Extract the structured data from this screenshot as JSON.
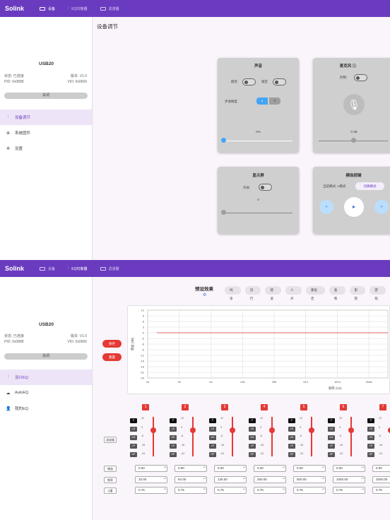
{
  "app": {
    "brand": "Solink",
    "nav": [
      "设备",
      "EQ均衡器",
      "滤波器"
    ]
  },
  "device": {
    "name": "USB20",
    "status_label": "状态: 已连接",
    "version_label": "版本: V1.0",
    "pid_label": "PID: 0x0888",
    "vid_label": "VID: 0x0666",
    "close_label": "关闭"
  },
  "screen1": {
    "sidebar": [
      "设备调节",
      "系统固件",
      "设置"
    ],
    "page_title": "设备调节",
    "sound": {
      "title": "声音",
      "mute": "静音",
      "lock": "锁定",
      "step": "步进精度",
      "step_options": [
        "1",
        "5"
      ],
      "volume": "0%",
      "volume_value": 0
    },
    "mic": {
      "title": "麦克风",
      "control": "控制:",
      "gain": "0 dB",
      "gain_value": 0.5
    },
    "display": {
      "title": "显示屏",
      "switch": "开关:",
      "brightness": "0",
      "brightness_value": 0
    },
    "analog": {
      "title": "模拟按键",
      "mode": "当前模式: A模式",
      "switch_mode": "切换模式",
      "buttons": [
        "«",
        "▸",
        "»"
      ]
    }
  },
  "screen2": {
    "sidebar": [
      "设计EQ",
      "AutoEQ",
      "我的EQ"
    ],
    "preset_title": "预设效果",
    "presets": [
      "纯净",
      "流行",
      "摇滚",
      "人声",
      "重低音",
      "柔和",
      "影院",
      "游戏"
    ],
    "save": "保存",
    "reset": "重置",
    "chart_data": {
      "type": "line",
      "ylabel": "增益 (dB)",
      "xlabel": "频率 (Hz)",
      "yticks": [
        12,
        9,
        6,
        3,
        0,
        -3,
        -6,
        -9,
        -12,
        -15,
        -18,
        -21,
        -24
      ],
      "xticks": [
        "16",
        "32",
        "64",
        "128",
        "256",
        "512",
        "1024",
        "2048"
      ],
      "ylim": [
        -24,
        12
      ],
      "series": [
        {
          "x": [
            16,
            2048
          ],
          "y": [
            0,
            0
          ]
        }
      ]
    },
    "filter_label": "滤波器",
    "filter_types": [
      "P",
      "LS",
      "HS",
      "LP",
      "HP"
    ],
    "gain_scale": [
      "12",
      "3",
      "-6",
      "-15",
      "-24"
    ],
    "row_labels": [
      "增益",
      "频率",
      "Q值"
    ],
    "bands": [
      {
        "n": "1",
        "gain": "0.00",
        "freq": "32.00",
        "q": "0.75"
      },
      {
        "n": "2",
        "gain": "0.00",
        "freq": "64.00",
        "q": "0.75"
      },
      {
        "n": "3",
        "gain": "0.00",
        "freq": "125.00",
        "q": "0.75"
      },
      {
        "n": "4",
        "gain": "0.00",
        "freq": "250.00",
        "q": "0.75"
      },
      {
        "n": "5",
        "gain": "0.00",
        "freq": "500.00",
        "q": "0.75"
      },
      {
        "n": "6",
        "gain": "0.00",
        "freq": "1000.00",
        "q": "0.75"
      },
      {
        "n": "7",
        "gain": "0.00",
        "freq": "2000.00",
        "q": "0.75"
      }
    ]
  }
}
